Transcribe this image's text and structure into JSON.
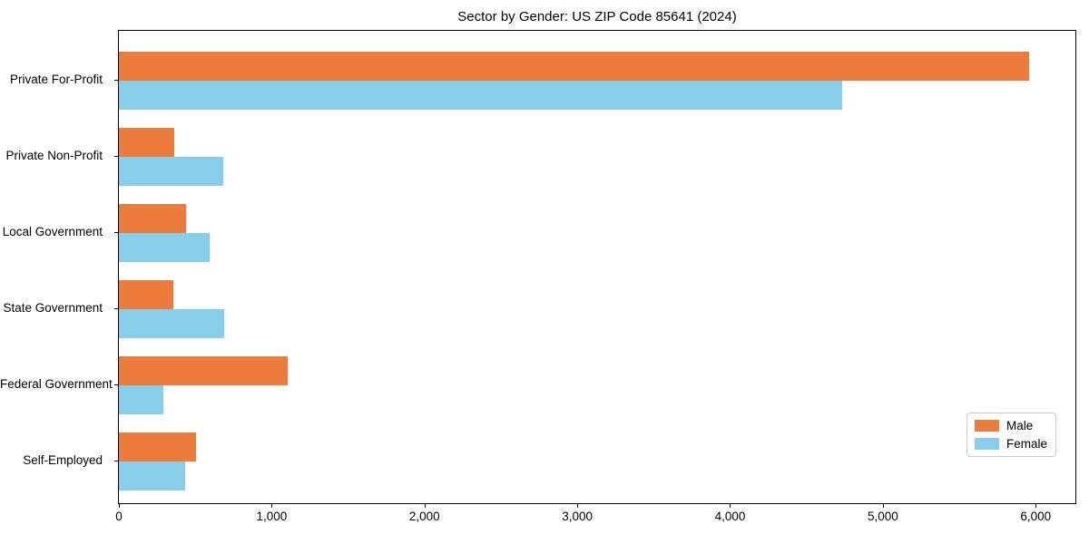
{
  "title": "Sector by Gender: US ZIP Code 85641 (2024)",
  "colors": {
    "male": "#EB7C3B",
    "female": "#87CEEB",
    "axis": "#000000",
    "legend_border": "#CCCCCC",
    "background": "#FFFFFF"
  },
  "legend": {
    "position": "lower right",
    "entries": [
      {
        "label": "Male",
        "color": "#EB7C3B"
      },
      {
        "label": "Female",
        "color": "#87CEEB"
      }
    ]
  },
  "chart_data": {
    "type": "bar",
    "orientation": "horizontal",
    "title": "Sector by Gender: US ZIP Code 85641 (2024)",
    "categories": [
      "Private For-Profit",
      "Private Non-Profit",
      "Local Government",
      "State Government",
      "Federal Government",
      "Self-Employed"
    ],
    "series": [
      {
        "name": "Male",
        "color": "#EB7C3B",
        "values": [
          5960,
          365,
          440,
          355,
          1105,
          505
        ]
      },
      {
        "name": "Female",
        "color": "#87CEEB",
        "values": [
          4735,
          685,
          595,
          690,
          290,
          435
        ]
      }
    ],
    "xlabel": "",
    "ylabel": "",
    "xlim": [
      0,
      6260
    ],
    "x_ticks": [
      {
        "value": 0,
        "label": "0"
      },
      {
        "value": 1000,
        "label": "1,000"
      },
      {
        "value": 2000,
        "label": "2,000"
      },
      {
        "value": 3000,
        "label": "3,000"
      },
      {
        "value": 4000,
        "label": "4,000"
      },
      {
        "value": 5000,
        "label": "5,000"
      },
      {
        "value": 6000,
        "label": "6,000"
      }
    ],
    "grid": false,
    "legend_position": "lower right"
  }
}
